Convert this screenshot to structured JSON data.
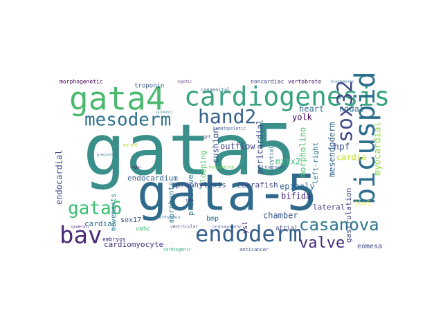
{
  "figure": {
    "words": [
      {
        "text": "gata5",
        "color": "#3a8f8b"
      },
      {
        "text": "gata-5",
        "color": "#2f6a8c"
      },
      {
        "text": "gata4",
        "color": "#4bb96e"
      },
      {
        "text": "cardiogenesis",
        "color": "#39a37f"
      },
      {
        "text": "bicuspid",
        "color": "#2c6e8e"
      },
      {
        "text": "sox32",
        "color": "#3f4a89"
      },
      {
        "text": "hand2",
        "color": "#35608c"
      },
      {
        "text": "mesoderm",
        "color": "#2d718e"
      },
      {
        "text": "gata6",
        "color": "#3bbf72"
      },
      {
        "text": "bav",
        "color": "#482a76"
      },
      {
        "text": "endoderm",
        "color": "#355f8d"
      },
      {
        "text": "casanova",
        "color": "#2b758e"
      },
      {
        "text": "valve",
        "color": "#452a7b"
      },
      {
        "text": "hpf",
        "color": "#3e4c8a"
      },
      {
        "text": "myocardial",
        "color": "#8fd744"
      },
      {
        "text": "cardia",
        "color": "#c2df23"
      },
      {
        "text": "nodal",
        "color": "#2e6d8e"
      },
      {
        "text": "mesendoderm",
        "color": "#33638d"
      },
      {
        "text": "morpholino",
        "color": "#4cc26c"
      },
      {
        "text": "mxtx2",
        "color": "#3aba76"
      },
      {
        "text": "heart",
        "color": "#2f6b8e"
      },
      {
        "text": "yolk",
        "color": "#440154"
      },
      {
        "text": "cushion",
        "color": "#3b528b"
      },
      {
        "text": "outflow",
        "color": "#404387"
      },
      {
        "text": "pericardial",
        "color": "#3e4a89"
      },
      {
        "text": "syncytial",
        "color": "#2d708e"
      },
      {
        "text": "left-right",
        "color": "#2a768e"
      },
      {
        "text": "gastrulation",
        "color": "#404588"
      },
      {
        "text": "epiboly",
        "color": "#2f6b8e"
      },
      {
        "text": "bifida",
        "color": "#482475"
      },
      {
        "text": "lateral",
        "color": "#433e85"
      },
      {
        "text": "tbx5",
        "color": "#fde725"
      },
      {
        "text": "chamber",
        "color": "#3a548c"
      },
      {
        "text": "eomesa",
        "color": "#3e4989"
      },
      {
        "text": "atrial",
        "color": "#404688"
      },
      {
        "text": "zebrafish",
        "color": "#3f4889"
      },
      {
        "text": "ysl",
        "color": "#481b6d"
      },
      {
        "text": "endocardial",
        "color": "#3d4d8a"
      },
      {
        "text": "endocardium",
        "color": "#355f8d"
      },
      {
        "text": "morphants",
        "color": "#2b748e"
      },
      {
        "text": "prophylaxis",
        "color": "#3e4989"
      },
      {
        "text": "primitive",
        "color": "#2d708e"
      },
      {
        "text": "looping",
        "color": "#5ec962"
      },
      {
        "text": "movements",
        "color": "#287d8e"
      },
      {
        "text": "bmp",
        "color": "#30698e"
      },
      {
        "text": "sox17",
        "color": "#3d4e8a"
      },
      {
        "text": "cardiac",
        "color": "#2e6f8e"
      },
      {
        "text": "vmhc",
        "color": "#3aba76"
      },
      {
        "text": "embryos",
        "color": "#472c7a"
      },
      {
        "text": "cardiomyocyte",
        "color": "#46307e"
      },
      {
        "text": "troponin",
        "color": "#3b528b"
      },
      {
        "text": "morphogenetic",
        "color": "#440154"
      },
      {
        "text": "noncardiac",
        "color": "#3e4989"
      },
      {
        "text": "vertebrate",
        "color": "#481668"
      },
      {
        "text": "congenital",
        "color": "#31688e"
      },
      {
        "text": "ventricular",
        "color": "#3e4a89"
      },
      {
        "text": "cardiogenic",
        "color": "#21a685"
      },
      {
        "text": "anticancer",
        "color": "#3e4a89"
      },
      {
        "text": "blastomeres",
        "color": "#2c728e"
      },
      {
        "text": "zygotic",
        "color": "#481f70"
      },
      {
        "text": "myocardium",
        "color": "#7ad151"
      },
      {
        "text": "forerunner",
        "color": "#404688"
      },
      {
        "text": "tube",
        "color": "#482173"
      },
      {
        "text": "hematopoietic",
        "color": "#3a538b"
      },
      {
        "text": "gut",
        "color": "#3f4788"
      },
      {
        "text": "organ",
        "color": "#440154"
      },
      {
        "text": "mutant",
        "color": "#b5de2b"
      },
      {
        "text": "cardiomyopathy",
        "color": "#3b518b"
      },
      {
        "text": "arrhythmia",
        "color": "#31688e"
      },
      {
        "text": "spadetail",
        "color": "#482878"
      },
      {
        "text": "precardiac",
        "color": "#2e6e8e"
      },
      {
        "text": "pulmonic",
        "color": "#25858e"
      }
    ]
  }
}
